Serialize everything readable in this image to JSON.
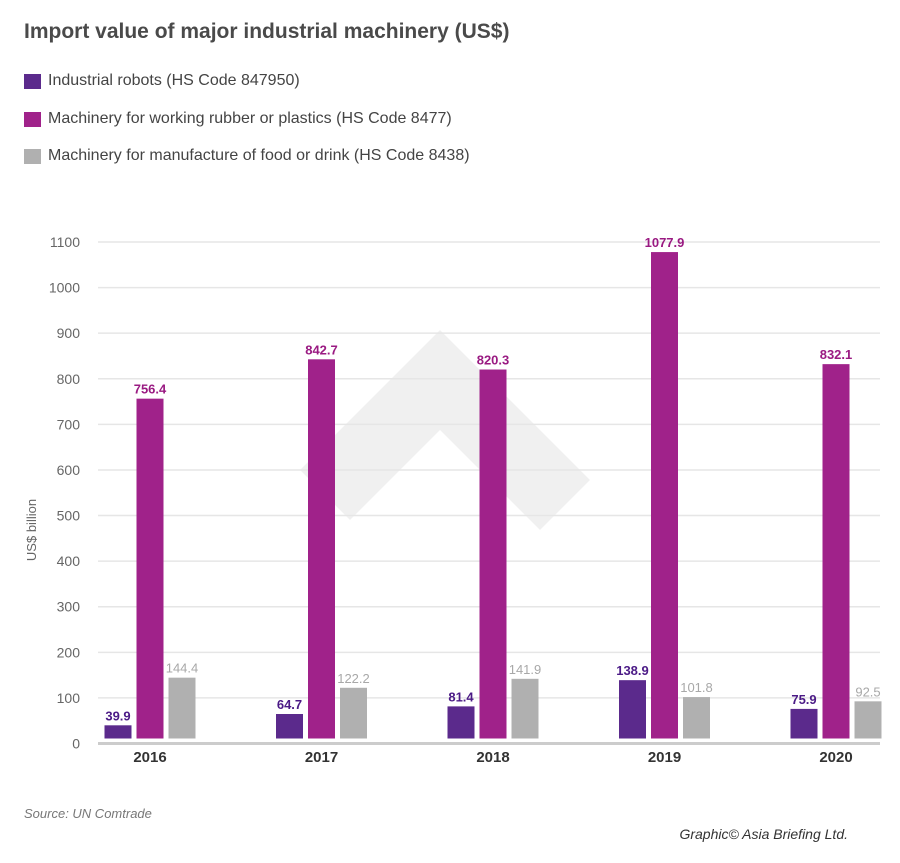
{
  "chart_data": {
    "type": "bar",
    "title": "Import value of major industrial machinery (US$)",
    "ylabel": "US$ billion",
    "xlabel": "",
    "ylim": [
      0,
      1100
    ],
    "yticks": [
      0,
      100,
      200,
      300,
      400,
      500,
      600,
      700,
      800,
      900,
      1000,
      1100
    ],
    "grid": true,
    "legend_position": "top-left",
    "categories": [
      "2016",
      "2017",
      "2018",
      "2019",
      "2020"
    ],
    "series": [
      {
        "name": "Industrial robots (HS Code 847950)",
        "color": "#5b2a8c",
        "label_color": "#4b1a86",
        "values": [
          39.9,
          64.7,
          81.4,
          138.9,
          75.9
        ]
      },
      {
        "name": "Machinery for working rubber or plastics (HS Code 8477)",
        "color": "#a0228a",
        "label_color": "#9a1a82",
        "values": [
          756.4,
          842.7,
          820.3,
          1077.9,
          832.1
        ]
      },
      {
        "name": "Machinery for manufacture of food or drink (HS Code 8438)",
        "color": "#b0b0b0",
        "label_color": "#a8a8a8",
        "values": [
          144.4,
          122.2,
          141.9,
          101.8,
          92.5
        ]
      }
    ]
  },
  "source": "Source: UN Comtrade",
  "credit": "Graphic© Asia Briefing Ltd."
}
